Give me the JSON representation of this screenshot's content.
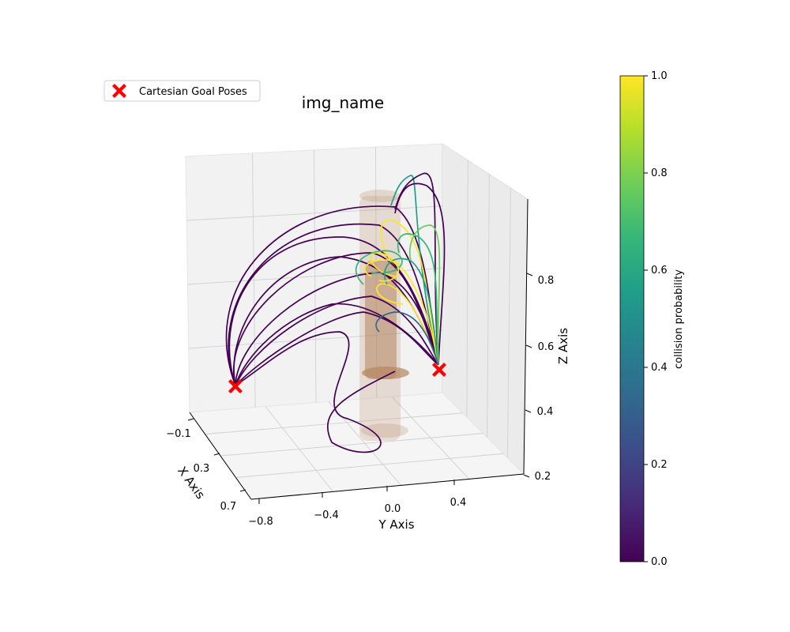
{
  "chart_data": {
    "type": "scatter",
    "projection": "3d",
    "title": "img_name",
    "xlabel": "X Axis",
    "ylabel": "Y Axis",
    "zlabel": "Z Axis",
    "x_ticks": [
      "−0.1",
      "0.3",
      "0.7"
    ],
    "y_ticks": [
      "−0.8",
      "−0.4",
      "0.0",
      "0.4"
    ],
    "z_ticks": [
      "0.2",
      "0.4",
      "0.6",
      "0.8"
    ],
    "grid": true,
    "legend": {
      "placement": "upper-left",
      "entries": [
        "Cartesian Goal Poses"
      ]
    },
    "goal_marker_color": "#ff0000",
    "obstacle_color": "#b58660",
    "colorbar": {
      "label": "collision probability",
      "colormap": "viridis",
      "range": [
        0.0,
        1.0
      ],
      "ticks": [
        "0.0",
        "0.2",
        "0.4",
        "0.6",
        "0.8",
        "1.0"
      ],
      "stops": [
        "#440154",
        "#482878",
        "#3e4a89",
        "#31688e",
        "#26828e",
        "#1f9e89",
        "#35b779",
        "#6ece58",
        "#b5de2b",
        "#fde725"
      ]
    },
    "series": [
      {
        "name": "Cartesian Goal Poses",
        "marker": "X",
        "color": "#ff0000"
      }
    ]
  }
}
